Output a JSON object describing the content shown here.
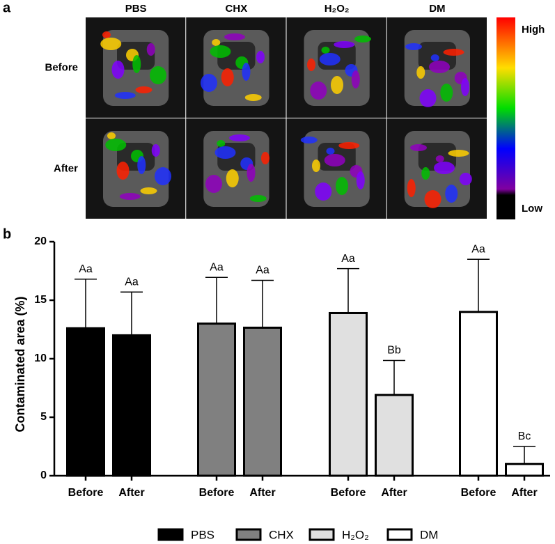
{
  "panel_a": {
    "label": "a",
    "columns": [
      "PBS",
      "CHX",
      "H₂O₂",
      "DM"
    ],
    "rows": [
      "Before",
      "After"
    ],
    "colorbar": {
      "high": "High",
      "low": "Low"
    }
  },
  "chart_data": {
    "type": "bar",
    "panel_label": "b",
    "y_label": "Contaminated area (%)",
    "categories": [
      "Before",
      "After"
    ],
    "ylim": [
      0,
      20
    ],
    "yticks": [
      0,
      5,
      10,
      15,
      20
    ],
    "series": [
      {
        "name": "PBS",
        "color": "#000000",
        "values": [
          12.6,
          12.0
        ],
        "errors": [
          4.2,
          3.7
        ],
        "labels": [
          "Aa",
          "Aa"
        ]
      },
      {
        "name": "CHX",
        "color": "#808080",
        "values": [
          13.0,
          12.65
        ],
        "errors": [
          3.95,
          4.05
        ],
        "labels": [
          "Aa",
          "Aa"
        ]
      },
      {
        "name": "H₂O₂",
        "color": "#e0e0e0",
        "values": [
          13.9,
          6.9
        ],
        "errors": [
          3.8,
          2.95
        ],
        "labels": [
          "Aa",
          "Bb"
        ]
      },
      {
        "name": "DM",
        "color": "#ffffff",
        "values": [
          14.0,
          1.0
        ],
        "errors": [
          4.5,
          1.5
        ],
        "labels": [
          "Aa",
          "Bc"
        ]
      }
    ]
  }
}
